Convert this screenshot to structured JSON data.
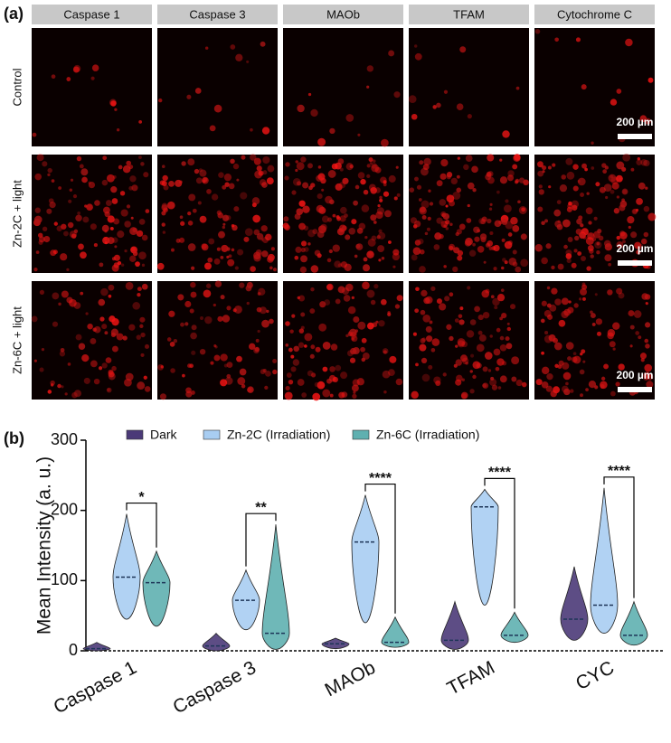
{
  "panel_a": {
    "label": "(a)",
    "columns": [
      "Caspase 1",
      "Caspase 3",
      "MAOb",
      "TFAM",
      "Cytochrome C"
    ],
    "rows": [
      "Control",
      "Zn-2C + light",
      "Zn-6C + light"
    ],
    "scale_bar": "200 µm"
  },
  "chart_data": {
    "type": "violin",
    "panel_label": "(b)",
    "y_label": "Mean Intensity (a. u.)",
    "categories": [
      "Caspase 1",
      "Caspase 3",
      "MAOb",
      "TFAM",
      "CYC"
    ],
    "ylim": [
      0,
      300
    ],
    "yticks": [
      0,
      100,
      200,
      300
    ],
    "series": [
      {
        "name": "Dark",
        "color": "#4b3a78",
        "values": [
          {
            "min": 0,
            "median": 3,
            "max": 12
          },
          {
            "min": 0,
            "median": 7,
            "max": 25
          },
          {
            "min": 3,
            "median": 10,
            "max": 18
          },
          {
            "min": 2,
            "median": 15,
            "max": 70
          },
          {
            "min": 15,
            "median": 45,
            "max": 120
          }
        ]
      },
      {
        "name": "Zn-2C (Irradiation)",
        "color": "#a8cdf2",
        "values": [
          {
            "min": 45,
            "median": 105,
            "max": 195
          },
          {
            "min": 30,
            "median": 72,
            "max": 115
          },
          {
            "min": 40,
            "median": 155,
            "max": 222
          },
          {
            "min": 65,
            "median": 205,
            "max": 230
          },
          {
            "min": 25,
            "median": 65,
            "max": 232
          }
        ]
      },
      {
        "name": "Zn-6C (Irradiation)",
        "color": "#5fb0b0",
        "values": [
          {
            "min": 35,
            "median": 97,
            "max": 142
          },
          {
            "min": 2,
            "median": 25,
            "max": 180
          },
          {
            "min": 5,
            "median": 12,
            "max": 48
          },
          {
            "min": 12,
            "median": 22,
            "max": 55
          },
          {
            "min": 8,
            "median": 22,
            "max": 70
          }
        ]
      }
    ],
    "significance": [
      {
        "category": 0,
        "label": "*"
      },
      {
        "category": 1,
        "label": "**"
      },
      {
        "category": 2,
        "label": "****"
      },
      {
        "category": 3,
        "label": "****"
      },
      {
        "category": 4,
        "label": "****"
      }
    ]
  }
}
